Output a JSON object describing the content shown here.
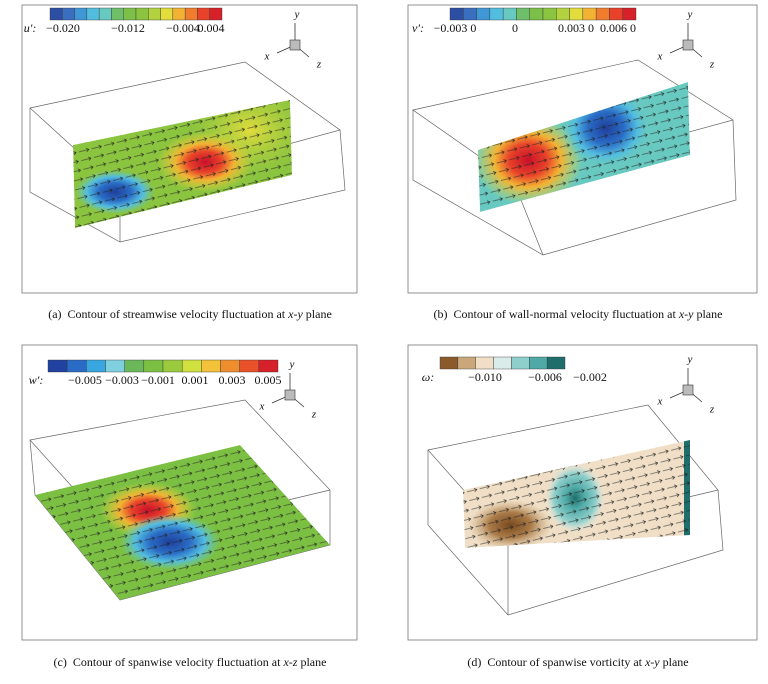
{
  "panels": [
    {
      "colorbar": {
        "label": "u′:",
        "colors": [
          "#2c4fa3",
          "#3a6fc0",
          "#3f97d6",
          "#53bde0",
          "#68c9c0",
          "#6fbf6a",
          "#7cc04a",
          "#8bc43f",
          "#b3d23f",
          "#e2dc3c",
          "#f2b234",
          "#ef7d2d",
          "#e8432a",
          "#d6202a"
        ],
        "ticks": [
          "−0.020",
          "−0.012",
          "−0.004",
          "0.004"
        ]
      },
      "axes": {
        "y": "y",
        "x": "x",
        "z": "z"
      },
      "caption": [
        "(a)  Contour of streamwise velocity fluctuation at ",
        "x-y",
        " plane"
      ]
    },
    {
      "colorbar": {
        "label": "v′:",
        "colors": [
          "#2c4fa3",
          "#3a6fc0",
          "#3f97d6",
          "#53bde0",
          "#68c9c0",
          "#6fbf6a",
          "#7cc04a",
          "#8bc43f",
          "#b3d23f",
          "#e2dc3c",
          "#f2b234",
          "#ef7d2d",
          "#e8432a",
          "#d6202a"
        ],
        "ticks": [
          "−0.003 0",
          "0",
          "0.003 0",
          "0.006 0"
        ]
      },
      "axes": {
        "y": "y",
        "x": "x",
        "z": "z"
      },
      "caption": [
        "(b)  Contour of wall-normal velocity fluctuation at ",
        "x-y",
        " plane"
      ]
    },
    {
      "colorbar": {
        "label": "w′:",
        "colors": [
          "#2142a0",
          "#2a6cc5",
          "#38a6e0",
          "#7fd0df",
          "#6ab85a",
          "#7cc043",
          "#9bca3e",
          "#cfe03f",
          "#f2c23a",
          "#ef8e2e",
          "#e8512a",
          "#d6202a"
        ],
        "ticks": [
          "−0.005",
          "−0.003",
          "−0.001",
          "0.001",
          "0.003",
          "0.005"
        ]
      },
      "axes": {
        "y": "y",
        "x": "x",
        "z": "z"
      },
      "caption": [
        "(c)  Contour of spanwise velocity fluctuation at ",
        "x-z",
        " plane"
      ]
    },
    {
      "colorbar": {
        "label": "ω:",
        "colors": [
          "#8b5a2b",
          "#c9a77a",
          "#f0dfc6",
          "#d9ecea",
          "#8fcfcb",
          "#4fa9a6",
          "#1f6e6b"
        ],
        "ticks": [
          "−0.010",
          "−0.006",
          "−0.002"
        ]
      },
      "axes": {
        "y": "y",
        "x": "x",
        "z": "z"
      },
      "caption": [
        "(d)  Contour of spanwise vorticity at ",
        "x-y",
        " plane"
      ]
    }
  ]
}
